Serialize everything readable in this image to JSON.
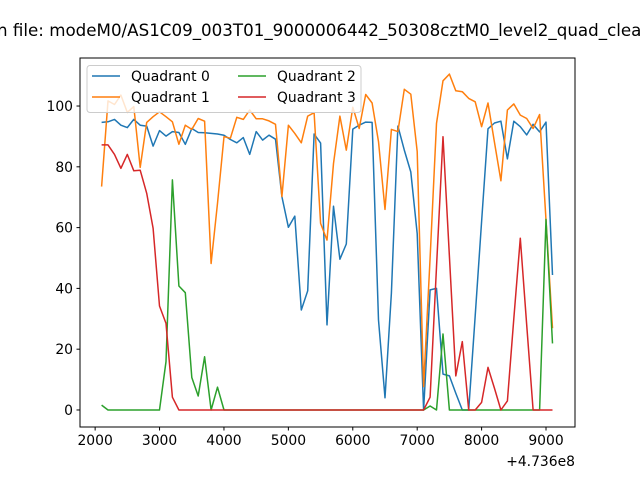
{
  "chart_data": {
    "type": "line",
    "title": "n file: modeM0/AS1C09_003T01_9000006442_50308cztM0_level2_quad_clean",
    "xlabel": "",
    "ylabel": "",
    "x_offset_label": "+4.736e8",
    "xlim": [
      1765,
      9450
    ],
    "ylim": [
      -5.6,
      115.8
    ],
    "xticks": [
      2000,
      3000,
      4000,
      5000,
      6000,
      7000,
      8000,
      9000
    ],
    "yticks": [
      0,
      20,
      40,
      60,
      80,
      100
    ],
    "grid": false,
    "legend_placement": "upper-left",
    "legend_columns": 2,
    "x_start": 2100,
    "x_step": 100,
    "series": [
      {
        "name": "Quadrant 0",
        "color": "#1f77b4",
        "values": [
          94.6,
          94.8,
          95.6,
          93.7,
          92.9,
          95.6,
          93.7,
          93.4,
          86.8,
          91.9,
          90.1,
          91.6,
          91.3,
          87.4,
          92.6,
          91.3,
          91.2,
          91.0,
          90.8,
          90.4,
          89.0,
          87.9,
          89.6,
          84.1,
          91.6,
          88.8,
          90.4,
          89.1,
          70.2,
          60.1,
          63.8,
          32.9,
          39.2,
          90.8,
          87.8,
          28.0,
          67.0,
          49.6,
          54.6,
          92.4,
          93.7,
          94.7,
          94.6,
          29.6,
          4.0,
          38.5,
          93.4,
          85.5,
          78.3,
          58.0,
          0,
          39.5,
          40.0,
          11.8,
          11.2,
          5.5,
          0,
          0,
          31,
          62,
          92.5,
          94.4,
          95.0,
          82.6,
          95.0,
          93.2,
          90.5,
          94.0,
          91.5,
          94.7,
          44.4
        ]
      },
      {
        "name": "Quadrant 1",
        "color": "#ff7f0e",
        "values": [
          73.5,
          101.7,
          100.5,
          103.6,
          97.9,
          99.8,
          79.8,
          94.6,
          96.5,
          98.1,
          96.5,
          94.8,
          87.4,
          93.7,
          92.3,
          95.9,
          95.0,
          48.2,
          68.0,
          89.9,
          89.4,
          96.3,
          95.6,
          98.7,
          95.8,
          95.8,
          95.1,
          94.0,
          70.2,
          93.7,
          91.0,
          87.9,
          96.7,
          97.8,
          61.4,
          55.9,
          81.1,
          96.7,
          85.5,
          99.6,
          92.6,
          103.8,
          101.0,
          88.3,
          66.0,
          92.3,
          91.6,
          105.5,
          103.9,
          85.0,
          7.7,
          50,
          94.3,
          108.3,
          110.5,
          105.0,
          104.7,
          102.5,
          101.4,
          93.2,
          101.0,
          88,
          75.4,
          98.7,
          100.7,
          97.0,
          95.9,
          92.6,
          97.2,
          62.5,
          26.9
        ]
      },
      {
        "name": "Quadrant 2",
        "color": "#2ca02c",
        "values": [
          1.6,
          0,
          0,
          0,
          0,
          0,
          0,
          0,
          0,
          0,
          15.9,
          75.7,
          40.8,
          38.6,
          10.7,
          4.6,
          17.5,
          0,
          7.5,
          0,
          0,
          0,
          0,
          0,
          0,
          0,
          0,
          0,
          0,
          0,
          0,
          0,
          0,
          0,
          0,
          0,
          0,
          0,
          0,
          0,
          0,
          0,
          0,
          0,
          0,
          0,
          0,
          0,
          0,
          0,
          0,
          1.3,
          0,
          25,
          0,
          0,
          0,
          0,
          0,
          0,
          0,
          0,
          0,
          0,
          0,
          0,
          0,
          0,
          0,
          62.7,
          21.9
        ]
      },
      {
        "name": "Quadrant 3",
        "color": "#d62728",
        "values": [
          87.2,
          87.2,
          84.1,
          79.5,
          84.1,
          78.7,
          78.9,
          71.3,
          59.8,
          34.2,
          28.5,
          4.2,
          0,
          0,
          0,
          0,
          0,
          0,
          0,
          0,
          0,
          0,
          0,
          0,
          0,
          0,
          0,
          0,
          0,
          0,
          0,
          0,
          0,
          0,
          0,
          0,
          0,
          0,
          0,
          0,
          0,
          0,
          0,
          0,
          0,
          0,
          0,
          0,
          0,
          0,
          0,
          4.2,
          47,
          89.9,
          50.6,
          11.2,
          22.5,
          0,
          0,
          2.5,
          14,
          7.1,
          0,
          3,
          30,
          56.5,
          28,
          0,
          0,
          0,
          0
        ]
      }
    ]
  }
}
